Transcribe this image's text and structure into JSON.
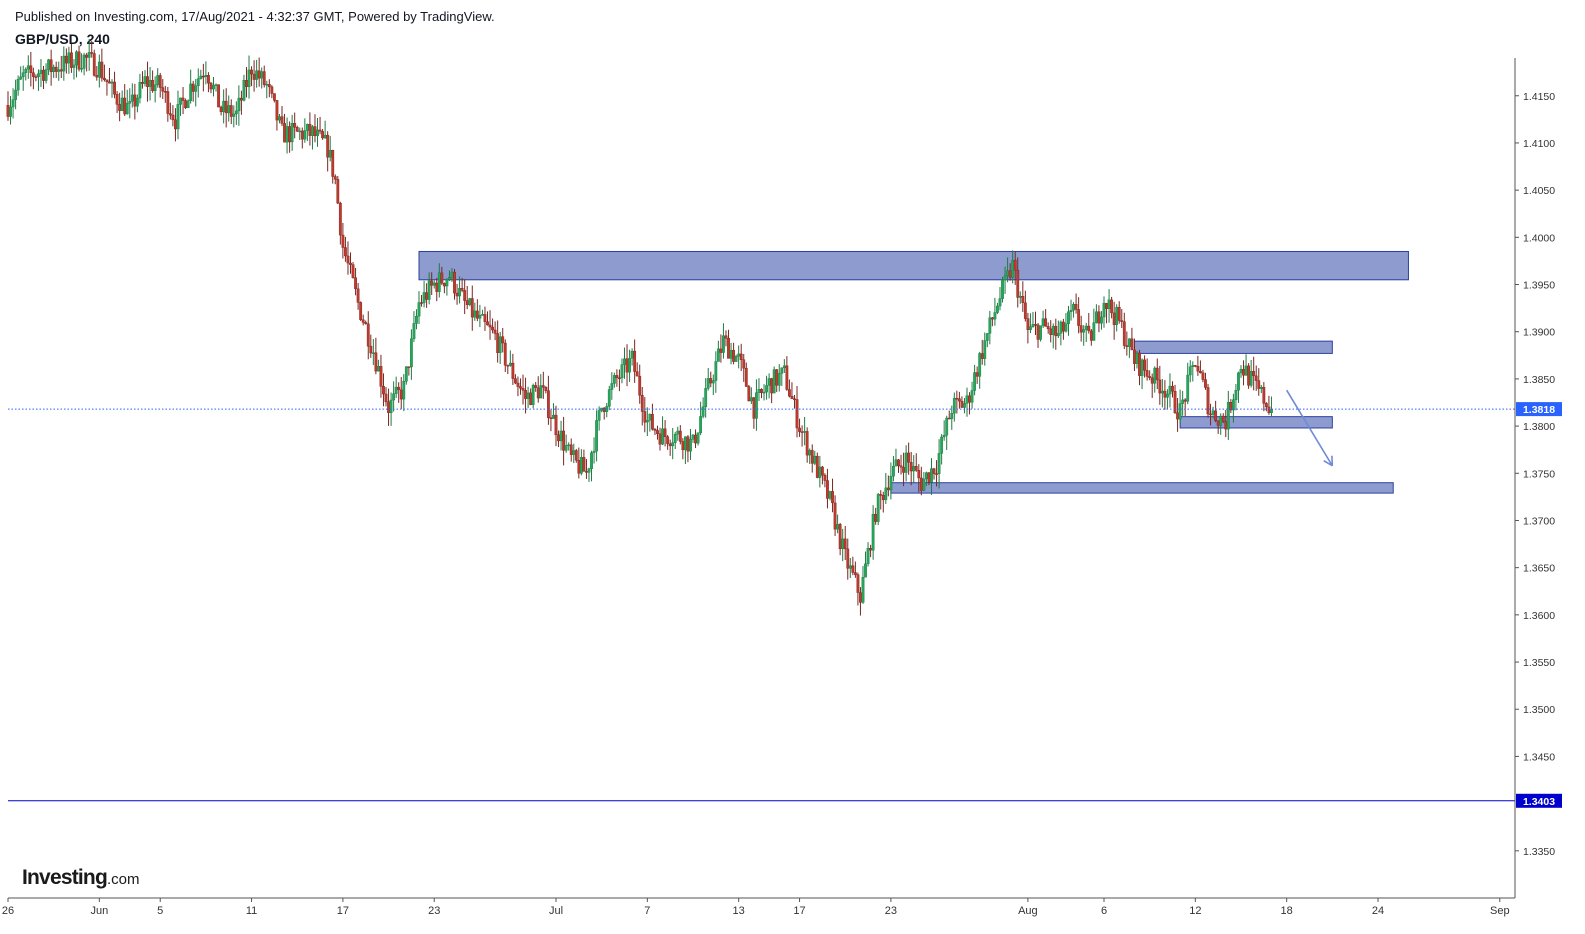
{
  "header": {
    "published": "Published on Investing.com, 17/Aug/2021 - 4:32:37 GMT, Powered by TradingView.",
    "symbol": "GBP/USD, 240"
  },
  "logo": {
    "main": "Investing",
    "tld": ".com"
  },
  "colors": {
    "up": "#26a65b",
    "down": "#c0392b",
    "zone_fill": "#8896cc",
    "zone_stroke": "#2b3fa0",
    "current_price_line": "#2962ff",
    "level_line": "#0000cc",
    "arrow": "#6f8ad6",
    "axis": "#555555"
  },
  "chart_data": {
    "type": "candlestick",
    "timeframe": "240",
    "yaxis": {
      "ticks": [
        1.415,
        1.41,
        1.405,
        1.4,
        1.395,
        1.39,
        1.385,
        1.38,
        1.375,
        1.37,
        1.365,
        1.36,
        1.355,
        1.35,
        1.345,
        1.335
      ],
      "tick_labels": [
        "1.4150",
        "1.4100",
        "1.4050",
        "1.4000",
        "1.3950",
        "1.3900",
        "1.3850",
        "1.3800",
        "1.3750",
        "1.3700",
        "1.3650",
        "1.3600",
        "1.3550",
        "1.3500",
        "1.3450",
        "1.3350"
      ],
      "range": [
        1.33,
        1.419
      ]
    },
    "xaxis": {
      "range": [
        "2021-05-26",
        "2021-09-02"
      ],
      "ticks": [
        {
          "date": "2021-05-26",
          "label": "26"
        },
        {
          "date": "2021-06-01",
          "label": "Jun"
        },
        {
          "date": "2021-06-05",
          "label": "5"
        },
        {
          "date": "2021-06-11",
          "label": "11"
        },
        {
          "date": "2021-06-17",
          "label": "17"
        },
        {
          "date": "2021-06-23",
          "label": "23"
        },
        {
          "date": "2021-07-01",
          "label": "Jul"
        },
        {
          "date": "2021-07-07",
          "label": "7"
        },
        {
          "date": "2021-07-13",
          "label": "13"
        },
        {
          "date": "2021-07-17",
          "label": "17"
        },
        {
          "date": "2021-07-23",
          "label": "23"
        },
        {
          "date": "2021-08-01",
          "label": "Aug"
        },
        {
          "date": "2021-08-06",
          "label": "6"
        },
        {
          "date": "2021-08-12",
          "label": "12"
        },
        {
          "date": "2021-08-18",
          "label": "18"
        },
        {
          "date": "2021-08-24",
          "label": "24"
        },
        {
          "date": "2021-09-01",
          "label": "Sep"
        }
      ]
    },
    "path": [
      [
        "2021-05-26",
        1.414
      ],
      [
        "2021-05-27",
        1.417
      ],
      [
        "2021-05-28",
        1.4175
      ],
      [
        "2021-05-31",
        1.419
      ],
      [
        "2021-06-01",
        1.418
      ],
      [
        "2021-06-02",
        1.415
      ],
      [
        "2021-06-03",
        1.4135
      ],
      [
        "2021-06-04",
        1.4165
      ],
      [
        "2021-06-05",
        1.416
      ],
      [
        "2021-06-06",
        1.4125
      ],
      [
        "2021-06-07",
        1.416
      ],
      [
        "2021-06-08",
        1.418
      ],
      [
        "2021-06-09",
        1.4135
      ],
      [
        "2021-06-10",
        1.413
      ],
      [
        "2021-06-11",
        1.418
      ],
      [
        "2021-06-12",
        1.416
      ],
      [
        "2021-06-13",
        1.411
      ],
      [
        "2021-06-14",
        1.411
      ],
      [
        "2021-06-15",
        1.411
      ],
      [
        "2021-06-16",
        1.4095
      ],
      [
        "2021-06-16T12",
        1.406
      ],
      [
        "2021-06-17",
        1.399
      ],
      [
        "2021-06-18",
        1.393
      ],
      [
        "2021-06-19",
        1.388
      ],
      [
        "2021-06-20",
        1.382
      ],
      [
        "2021-06-21",
        1.384
      ],
      [
        "2021-06-22",
        1.393
      ],
      [
        "2021-06-23",
        1.395
      ],
      [
        "2021-06-24",
        1.396
      ],
      [
        "2021-06-25",
        1.393
      ],
      [
        "2021-06-26",
        1.391
      ],
      [
        "2021-06-27",
        1.3895
      ],
      [
        "2021-06-28",
        1.386
      ],
      [
        "2021-06-29",
        1.383
      ],
      [
        "2021-06-30",
        1.384
      ],
      [
        "2021-07-01",
        1.38
      ],
      [
        "2021-07-02",
        1.3765
      ],
      [
        "2021-07-03",
        1.375
      ],
      [
        "2021-07-04",
        1.382
      ],
      [
        "2021-07-05",
        1.385
      ],
      [
        "2021-07-06",
        1.387
      ],
      [
        "2021-07-07",
        1.3805
      ],
      [
        "2021-07-08",
        1.379
      ],
      [
        "2021-07-09",
        1.379
      ],
      [
        "2021-07-10",
        1.378
      ],
      [
        "2021-07-11",
        1.384
      ],
      [
        "2021-07-12",
        1.389
      ],
      [
        "2021-07-13",
        1.387
      ],
      [
        "2021-07-14",
        1.382
      ],
      [
        "2021-07-15",
        1.3845
      ],
      [
        "2021-07-16",
        1.3855
      ],
      [
        "2021-07-17",
        1.38
      ],
      [
        "2021-07-18",
        1.376
      ],
      [
        "2021-07-19",
        1.372
      ],
      [
        "2021-07-20",
        1.366
      ],
      [
        "2021-07-21",
        1.362
      ],
      [
        "2021-07-22",
        1.371
      ],
      [
        "2021-07-23",
        1.375
      ],
      [
        "2021-07-24",
        1.3765
      ],
      [
        "2021-07-25",
        1.374
      ],
      [
        "2021-07-26",
        1.376
      ],
      [
        "2021-07-27",
        1.382
      ],
      [
        "2021-07-28",
        1.3825
      ],
      [
        "2021-07-29",
        1.388
      ],
      [
        "2021-07-30",
        1.393
      ],
      [
        "2021-07-31",
        1.397
      ],
      [
        "2021-08-01",
        1.39
      ],
      [
        "2021-08-02",
        1.3905
      ],
      [
        "2021-08-03",
        1.3895
      ],
      [
        "2021-08-04",
        1.392
      ],
      [
        "2021-08-05",
        1.389
      ],
      [
        "2021-08-06",
        1.3935
      ],
      [
        "2021-08-07",
        1.391
      ],
      [
        "2021-08-08",
        1.387
      ],
      [
        "2021-08-09",
        1.3855
      ],
      [
        "2021-08-10",
        1.384
      ],
      [
        "2021-08-11",
        1.3815
      ],
      [
        "2021-08-12",
        1.387
      ],
      [
        "2021-08-13",
        1.3815
      ],
      [
        "2021-08-14",
        1.3805
      ],
      [
        "2021-08-15",
        1.3865
      ],
      [
        "2021-08-16",
        1.384
      ],
      [
        "2021-08-17",
        1.3818
      ]
    ],
    "last_price": {
      "value": 1.3818,
      "label": "1.3818"
    },
    "level_line": {
      "value": 1.3403,
      "label": "1.3403"
    },
    "zones": [
      {
        "from": "2021-06-22",
        "to": "2021-08-26",
        "top": 1.3985,
        "bottom": 1.3955
      },
      {
        "from": "2021-08-08",
        "to": "2021-08-21",
        "top": 1.389,
        "bottom": 1.3877
      },
      {
        "from": "2021-08-11",
        "to": "2021-08-21",
        "top": 1.381,
        "bottom": 1.3798
      },
      {
        "from": "2021-07-23",
        "to": "2021-08-25",
        "top": 1.374,
        "bottom": 1.3729
      }
    ],
    "arrow": {
      "from": [
        "2021-08-18",
        1.3838
      ],
      "to": [
        "2021-08-21",
        1.3758
      ]
    }
  }
}
